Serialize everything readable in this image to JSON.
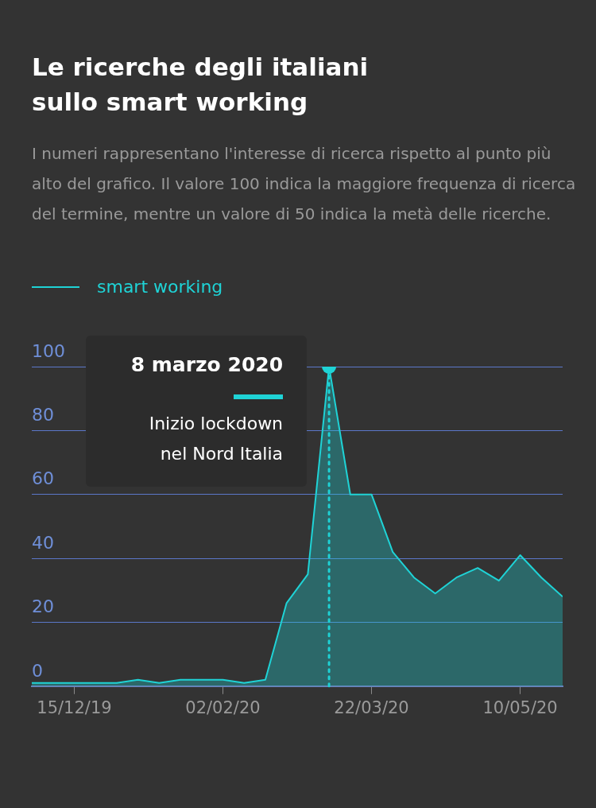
{
  "chart_data": {
    "type": "area",
    "title": "Le ricerche degli italiani sullo smart working",
    "subtitle": "I numeri rappresentano l'interesse di ricerca rispetto al punto più alto del grafico. Il valore 100 indica la maggiore frequenza di ricerca del termine, mentre un valore di 50 indica la metà delle ricerche.",
    "x": [
      "2019-12-01",
      "2019-12-08",
      "2019-12-15",
      "2019-12-22",
      "2019-12-29",
      "2020-01-05",
      "2020-01-12",
      "2020-01-19",
      "2020-01-26",
      "2020-02-02",
      "2020-02-09",
      "2020-02-16",
      "2020-02-23",
      "2020-03-01",
      "2020-03-08",
      "2020-03-15",
      "2020-03-22",
      "2020-03-29",
      "2020-04-05",
      "2020-04-12",
      "2020-04-19",
      "2020-04-26",
      "2020-05-03",
      "2020-05-10",
      "2020-05-17",
      "2020-05-24"
    ],
    "series": [
      {
        "name": "smart working",
        "color": "#1fd3d6",
        "values": [
          1,
          1,
          1,
          1,
          1,
          2,
          1,
          2,
          2,
          2,
          1,
          2,
          26,
          35,
          100,
          60,
          60,
          42,
          34,
          29,
          34,
          37,
          33,
          41,
          34,
          28
        ]
      }
    ],
    "xlim": [
      "2019-12-01",
      "2020-05-24"
    ],
    "xticks": [
      {
        "value": "2019-12-15",
        "label": "15/12/19"
      },
      {
        "value": "2020-02-02",
        "label": "02/02/20"
      },
      {
        "value": "2020-03-22",
        "label": "22/03/20"
      },
      {
        "value": "2020-05-10",
        "label": "10/05/20"
      }
    ],
    "ylim": [
      0,
      100
    ],
    "yticks": [
      0,
      20,
      40,
      60,
      80,
      100
    ],
    "grid": "y",
    "legend": "top left",
    "ref_lines": [
      {
        "axis": "x",
        "value": "2020-03-08",
        "color": "#1fd3d6",
        "line_style": "dotted"
      }
    ],
    "annotations": [
      "8 marzo 2020",
      "Inizio lockdown nel Nord Italia"
    ]
  }
}
